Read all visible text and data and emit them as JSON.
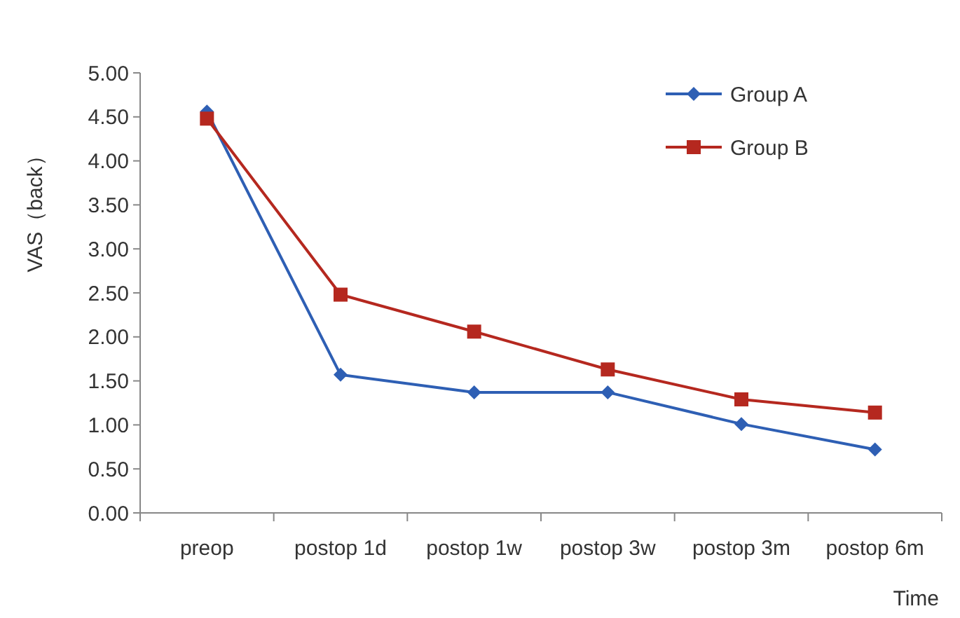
{
  "chart_data": {
    "type": "line",
    "xlabel": "Time",
    "ylabel": "VAS（back）",
    "categories": [
      "preop",
      "postop 1d",
      "postop 1w",
      "postop 3w",
      "postop 3m",
      "postop 6m"
    ],
    "series": [
      {
        "name": "Group A",
        "color": "#2e5fb4",
        "marker": "diamond",
        "values": [
          4.56,
          1.57,
          1.37,
          1.37,
          1.01,
          0.72
        ]
      },
      {
        "name": "Group B",
        "color": "#b5281f",
        "marker": "square",
        "values": [
          4.48,
          2.48,
          2.06,
          1.63,
          1.29,
          1.14
        ]
      }
    ],
    "ylim": [
      0,
      5
    ],
    "yticks": [
      {
        "value": 0,
        "label": "0.00"
      },
      {
        "value": 0.5,
        "label": "0.50"
      },
      {
        "value": 1,
        "label": "1.00"
      },
      {
        "value": 1.5,
        "label": "1.50"
      },
      {
        "value": 2,
        "label": "2.00"
      },
      {
        "value": 2.5,
        "label": "2.50"
      },
      {
        "value": 3,
        "label": "3.00"
      },
      {
        "value": 3.5,
        "label": "3.50"
      },
      {
        "value": 4,
        "label": "4.00"
      },
      {
        "value": 4.5,
        "label": "4.50"
      },
      {
        "value": 5,
        "label": "5.00"
      }
    ],
    "grid": false,
    "legend": "top right"
  }
}
